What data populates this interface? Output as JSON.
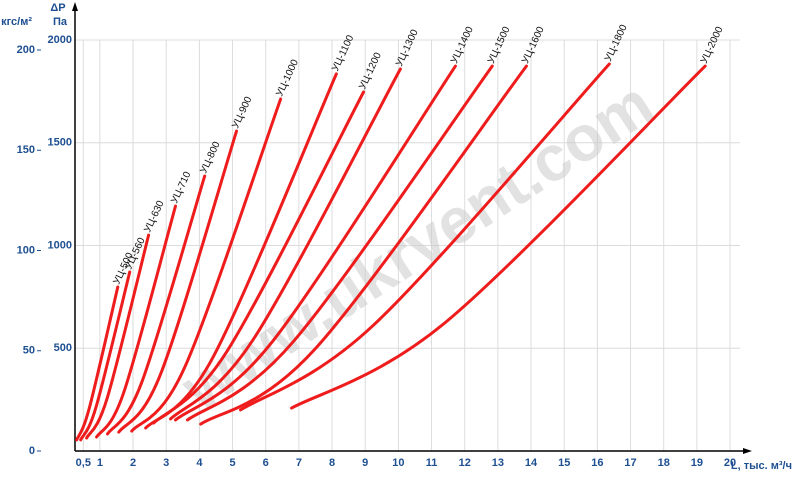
{
  "chart_data": {
    "type": "line",
    "y_label": "ΔP",
    "y2_unit": "кгс/м²",
    "y_unit": "Па",
    "x_label": "L, тыс. м³/ч",
    "watermark": "www.ukrvent.com",
    "xlim": [
      0.25,
      20.3
    ],
    "xticks": [
      {
        "value": 0.5,
        "label": "0,5"
      },
      1,
      2,
      3,
      4,
      5,
      6,
      7,
      8,
      9,
      10,
      11,
      12,
      13,
      14,
      15,
      16,
      17,
      18,
      19,
      20
    ],
    "ylim": [
      0,
      2000
    ],
    "yticks": [
      500,
      1000,
      1500,
      2000
    ],
    "y2lim": [
      0,
      205
    ],
    "y2ticks": [
      0,
      50,
      100,
      150,
      200
    ],
    "grid": true,
    "color": "#ee1c1c",
    "series": [
      {
        "name": "УЦ-500",
        "x": [
          0.3,
          0.68,
          1.54
        ],
        "values": [
          54,
          208,
          798
        ]
      },
      {
        "name": "УЦ-560",
        "x": [
          0.42,
          0.89,
          1.9
        ],
        "values": [
          54,
          217,
          871
        ]
      },
      {
        "name": "УЦ-630",
        "x": [
          0.6,
          1.22,
          2.47
        ],
        "values": [
          63,
          257,
          1051
        ]
      },
      {
        "name": "УЦ-710",
        "x": [
          0.9,
          1.72,
          3.28
        ],
        "values": [
          68,
          285,
          1192
        ]
      },
      {
        "name": "УЦ-800",
        "x": [
          1.23,
          2.26,
          4.16
        ],
        "values": [
          83,
          333,
          1338
        ]
      },
      {
        "name": "УЦ-900",
        "x": [
          1.57,
          2.84,
          5.12
        ],
        "values": [
          92,
          378,
          1557
        ]
      },
      {
        "name": "УЦ-1000",
        "x": [
          1.96,
          3.56,
          6.45
        ],
        "values": [
          97,
          408,
          1713
        ]
      },
      {
        "name": "УЦ-1100",
        "x": [
          2.38,
          4.4,
          8.13
        ],
        "values": [
          112,
          453,
          1835
        ]
      },
      {
        "name": "УЦ-1200",
        "x": [
          2.62,
          4.84,
          8.95
        ],
        "values": [
          136,
          487,
          1747
        ]
      },
      {
        "name": "УЦ-1300",
        "x": [
          3.13,
          5.61,
          10.06
        ],
        "values": [
          156,
          539,
          1859
        ]
      },
      {
        "name": "УЦ-1400",
        "x": [
          3.28,
          6.2,
          11.72
        ],
        "values": [
          151,
          532,
          1873
        ]
      },
      {
        "name": "УЦ-1500",
        "x": [
          3.64,
          6.83,
          12.83
        ],
        "values": [
          151,
          532,
          1873
        ]
      },
      {
        "name": "УЦ-1600",
        "x": [
          4.04,
          7.48,
          13.86
        ],
        "values": [
          131,
          495,
          1873
        ]
      },
      {
        "name": "УЦ-1800",
        "x": [
          5.24,
          9.26,
          16.36
        ],
        "values": [
          200,
          614,
          1883
        ]
      },
      {
        "name": "УЦ-2000",
        "x": [
          6.78,
          11.42,
          19.25
        ],
        "values": [
          209,
          626,
          1873
        ]
      }
    ]
  }
}
